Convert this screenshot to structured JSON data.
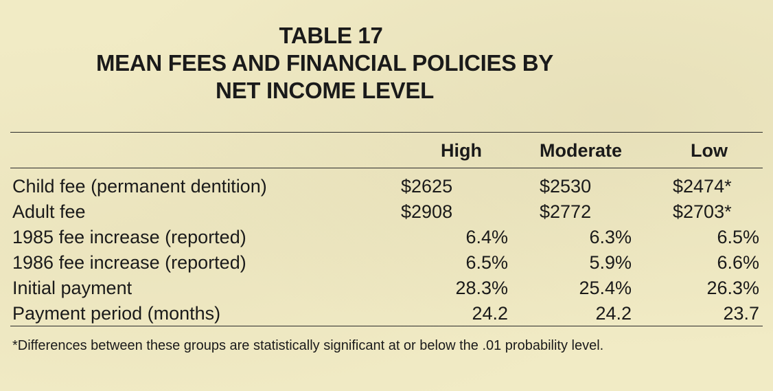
{
  "title": [
    "TABLE 17",
    "MEAN FEES AND FINANCIAL POLICIES BY",
    "NET INCOME LEVEL"
  ],
  "columns": [
    "High",
    "Moderate",
    "Low"
  ],
  "rows": [
    {
      "label": "Child fee (permanent dentition)",
      "high": "$2625",
      "moderate": "$2530",
      "low": "$2474*"
    },
    {
      "label": "Adult fee",
      "high": "$2908",
      "moderate": "$2772",
      "low": "$2703*"
    },
    {
      "label": "1985 fee increase (reported)",
      "high": "6.4%",
      "moderate": "6.3%",
      "low": "6.5%"
    },
    {
      "label": "1986 fee increase (reported)",
      "high": "6.5%",
      "moderate": "5.9%",
      "low": "6.6%"
    },
    {
      "label": "Initial payment",
      "high": "28.3%",
      "moderate": "25.4%",
      "low": "26.3%"
    },
    {
      "label": "Payment period (months)",
      "high": "24.2",
      "moderate": "24.2",
      "low": "23.7"
    }
  ],
  "footnote": "*Differences between these groups are statistically significant at or below the .01 probability level."
}
